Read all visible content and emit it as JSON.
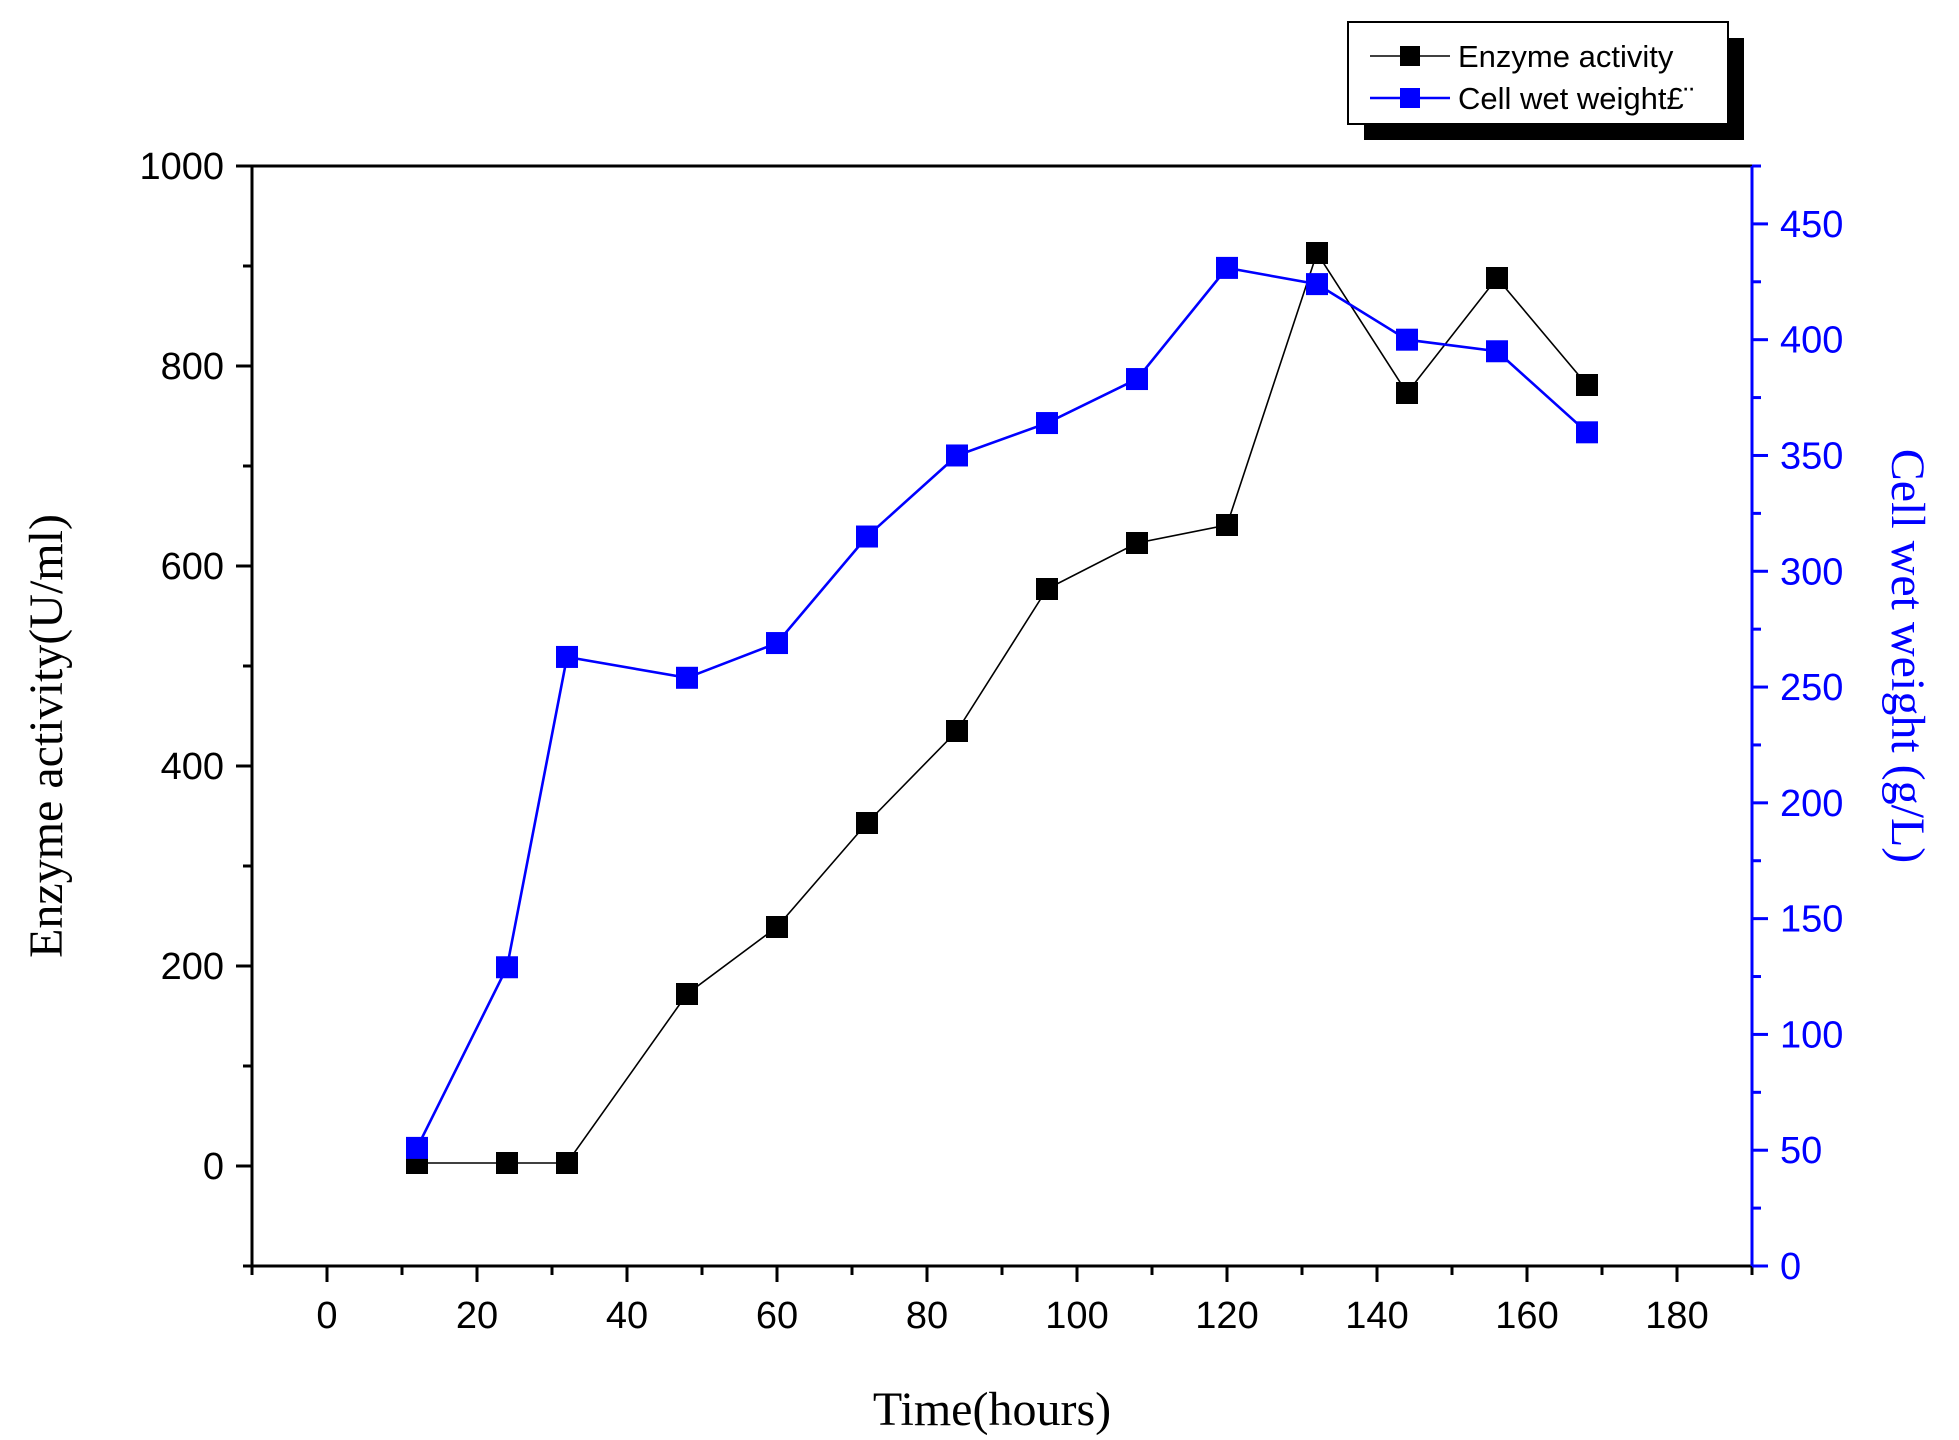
{
  "chart_data": {
    "type": "line",
    "xlabel": "Time(hours)",
    "ylabel": "Enzyme activity(U/ml)",
    "y2label": "Cell wet weight (g/L)",
    "xlim": [
      -10,
      190
    ],
    "ylim": [
      -100,
      1000
    ],
    "y2lim": [
      0,
      475
    ],
    "xticks": [
      0,
      20,
      40,
      60,
      80,
      100,
      120,
      140,
      160,
      180
    ],
    "yticks": [
      0,
      200,
      400,
      600,
      800,
      1000
    ],
    "y2ticks": [
      0,
      50,
      100,
      150,
      200,
      250,
      300,
      350,
      400,
      450
    ],
    "legend_position": "top-right",
    "series": [
      {
        "name": "Enzyme activity",
        "axis": "left",
        "color": "#000000",
        "x": [
          12,
          24,
          32,
          48,
          60,
          72,
          84,
          96,
          108,
          120,
          132,
          144,
          156,
          168
        ],
        "values": [
          3,
          3,
          3,
          172,
          239,
          343,
          435,
          577,
          623,
          641,
          913,
          773,
          888,
          781
        ]
      },
      {
        "name": "Cell wet weight£¨",
        "axis": "right",
        "color": "#0000ff",
        "x": [
          12,
          24,
          32,
          48,
          60,
          72,
          84,
          96,
          108,
          120,
          132,
          144,
          156,
          168
        ],
        "values": [
          51,
          129,
          263,
          254,
          269,
          315,
          350,
          364,
          383,
          431,
          424,
          400,
          395,
          360
        ]
      }
    ]
  }
}
